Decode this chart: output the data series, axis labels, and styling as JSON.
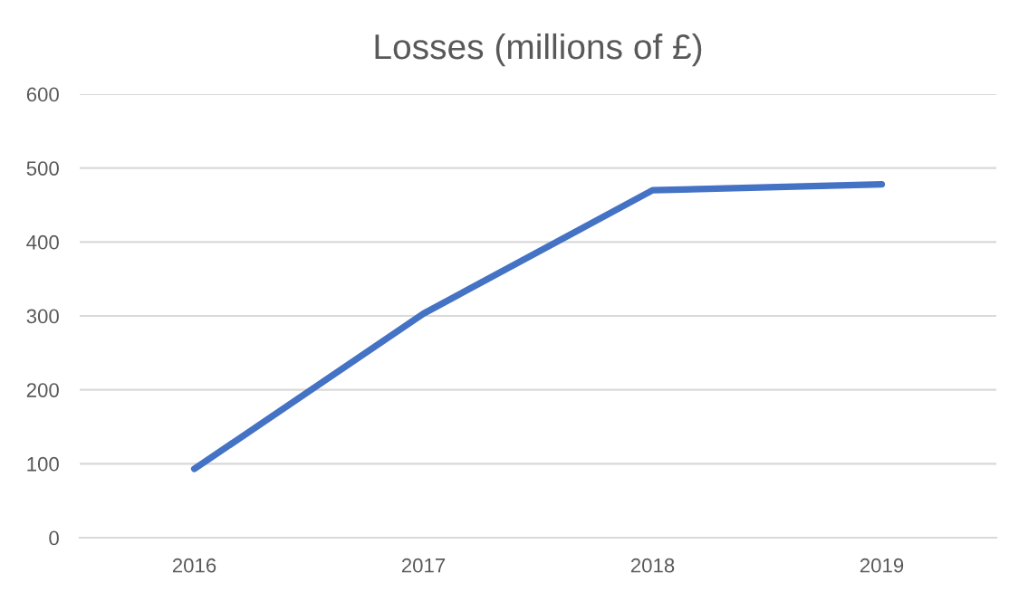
{
  "chart_data": {
    "type": "line",
    "title": "Losses (millions of £)",
    "categories": [
      "2016",
      "2017",
      "2018",
      "2019"
    ],
    "series": [
      {
        "color": "#4472c4",
        "values": [
          93,
          303,
          470,
          478
        ]
      }
    ],
    "ylim": [
      0,
      600
    ],
    "yticks": [
      0,
      100,
      200,
      300,
      400,
      500,
      600
    ],
    "grid": "y",
    "marker": "none",
    "line_style": "solid"
  }
}
